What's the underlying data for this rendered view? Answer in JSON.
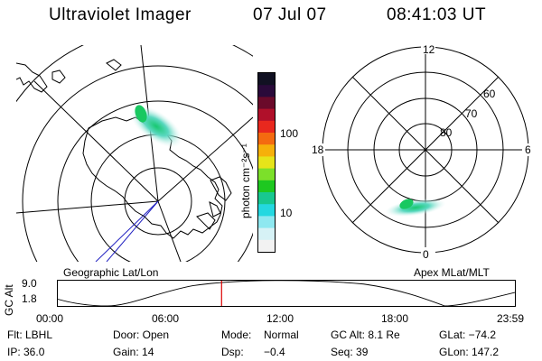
{
  "header": {
    "title": "Ultraviolet Imager",
    "date": "07 Jul 07",
    "time": "08:41:03 UT"
  },
  "colorbar": {
    "unit_label": "photon cm⁻²s⁻¹",
    "ticks": [
      "100",
      "10"
    ],
    "colors": [
      "#111122",
      "#2a0a3a",
      "#6a0a2a",
      "#b0102a",
      "#e8281e",
      "#f46a10",
      "#f6b00a",
      "#e6e41a",
      "#7ce02a",
      "#1ec820",
      "#18c890",
      "#24d8e0",
      "#8ee8f0",
      "#d6f2f6",
      "#f2f2f2"
    ]
  },
  "geo_map": {
    "caption": "Geographic Lat/Lon"
  },
  "polar_plot": {
    "caption": "Apex MLat/MLT",
    "mlt_labels": {
      "top": "12",
      "bottom": "0",
      "left": "18",
      "right": "6"
    },
    "lat_labels": [
      "60",
      "70",
      "80"
    ]
  },
  "gc_alt_plot": {
    "axis_label": "GC Alt",
    "y_ticks": [
      "9.0",
      "1.8"
    ],
    "x_ticks": [
      "00:00",
      "06:00",
      "12:00",
      "18:00",
      "23:59"
    ],
    "marker_color": "#dd0000"
  },
  "status": {
    "filter": "Flt: LBHL",
    "door": "Door: Open",
    "mode_label": "Mode:",
    "mode_value": "Normal",
    "gc_alt": "GC Alt: 8.1 Re",
    "glat": "GLat: −74.2",
    "ip": "IP: 36.0",
    "gain": "Gain: 14",
    "dsp_label": "Dsp:",
    "dsp_value": "−0.4",
    "seq": "Seq: 39",
    "glon": "GLon: 147.2"
  }
}
